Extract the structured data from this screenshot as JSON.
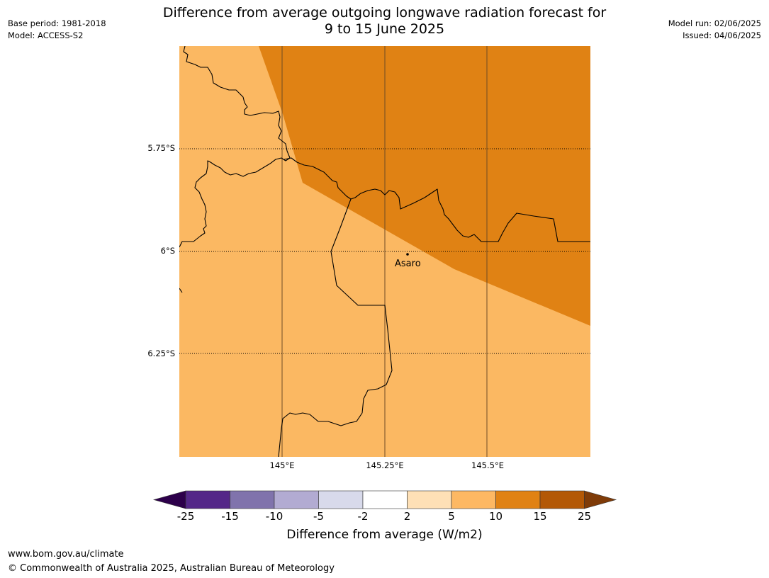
{
  "title": {
    "line1": "Difference from average outgoing longwave radiation forecast for",
    "line2": "9 to 15 June 2025"
  },
  "meta_left": {
    "base_period": "Base period: 1981-2018",
    "model": "Model: ACCESS-S2"
  },
  "meta_right": {
    "model_run": "Model run: 02/06/2025",
    "issued": "Issued: 04/06/2025"
  },
  "map": {
    "lat_labels": [
      "5.75°S",
      "6°S",
      "6.25°S"
    ],
    "lon_labels": [
      "145°E",
      "145.25°E",
      "145.5°E"
    ],
    "places": [
      {
        "name": "Asaro"
      }
    ],
    "colors": {
      "range_5_10": "#fbb862",
      "range_10_15": "#e08214"
    }
  },
  "colorbar": {
    "ticks": [
      "-25",
      "-15",
      "-10",
      "-5",
      "-2",
      "2",
      "5",
      "10",
      "15",
      "25"
    ],
    "colors": [
      "#2d004b",
      "#542788",
      "#8073ac",
      "#b2abd2",
      "#d8daeb",
      "#ffffff",
      "#fee0b6",
      "#fdb863",
      "#e08214",
      "#b35806",
      "#7f3b08"
    ],
    "label": "Difference from average (W/m2)"
  },
  "footer": {
    "website": "www.bom.gov.au/climate",
    "copyright": "© Commonwealth of Australia 2025, Australian Bureau of Meteorology"
  }
}
